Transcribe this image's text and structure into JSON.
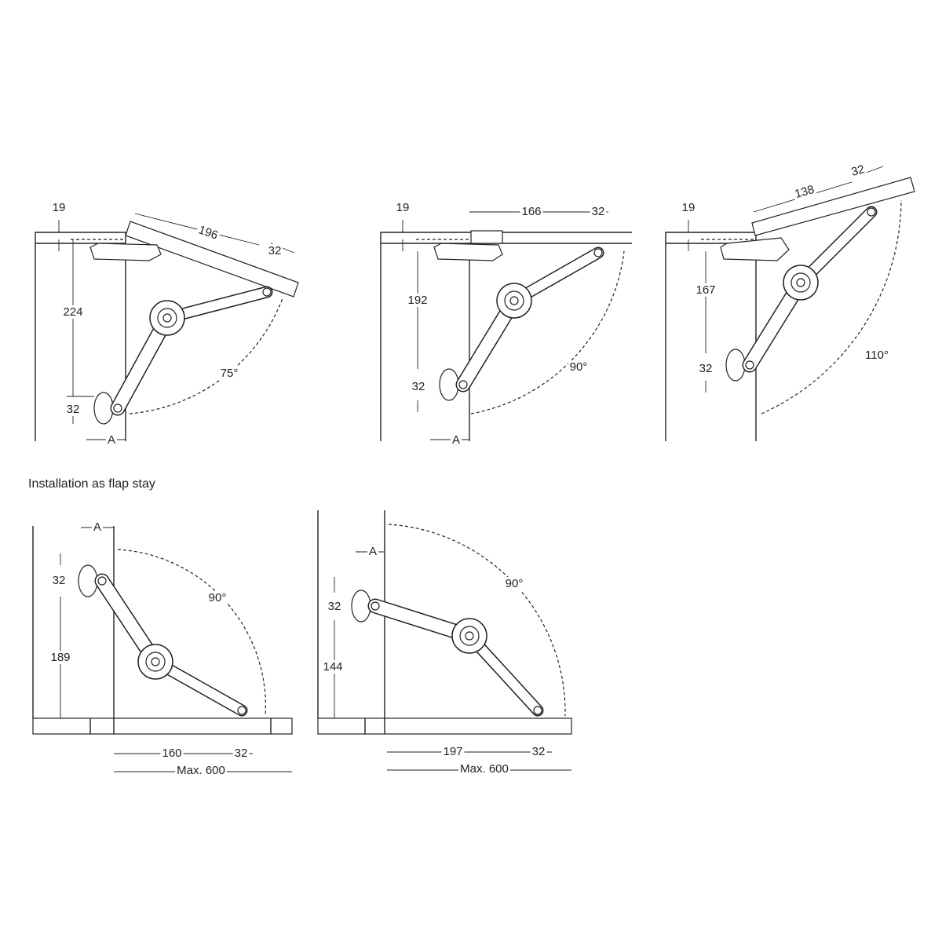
{
  "section_title": "Installation as flap stay",
  "diagrams": [
    {
      "labels": [
        "19",
        "196",
        "32",
        "224",
        "32",
        "A",
        "75°"
      ]
    },
    {
      "labels": [
        "19",
        "166",
        "32",
        "192",
        "32",
        "A",
        "90°"
      ]
    },
    {
      "labels": [
        "19",
        "138",
        "32",
        "167",
        "32",
        "110°"
      ]
    },
    {
      "labels": [
        "A",
        "32",
        "189",
        "90°",
        "160",
        "32",
        "Max. 600"
      ]
    },
    {
      "labels": [
        "A",
        "32",
        "144",
        "90°",
        "197",
        "32",
        "Max. 600"
      ]
    }
  ]
}
